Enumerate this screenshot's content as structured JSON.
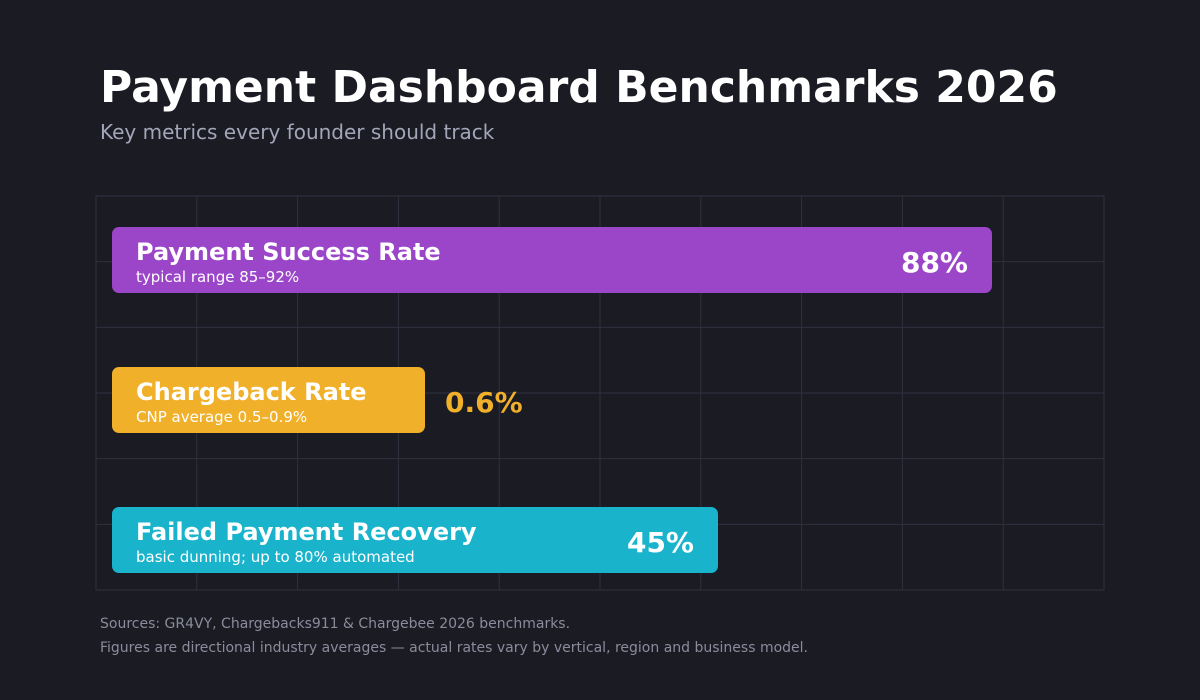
{
  "header": {
    "title": "Payment Dashboard Benchmarks 2026",
    "subtitle": "Key metrics every founder should track"
  },
  "chart_data": {
    "type": "bar",
    "orientation": "horizontal",
    "grid": true,
    "categories": [
      "Payment Success Rate",
      "Chargeback Rate",
      "Failed Payment Recovery"
    ],
    "bars": [
      {
        "name": "Payment Success Rate",
        "note": "typical range 85–92%",
        "value": 88,
        "value_label": "88%",
        "color": "#9b45c9",
        "value_color": "#ffffff",
        "value_inside": true
      },
      {
        "name": "Chargeback Rate",
        "note": "CNP average 0.5–0.9%",
        "value": 0.6,
        "value_label": "0.6%",
        "color": "#f0b02a",
        "value_color": "#f0b02a",
        "value_inside": false
      },
      {
        "name": "Failed Payment Recovery",
        "note": "basic dunning; up to 80% automated",
        "value": 45,
        "value_label": "45%",
        "color": "#1ab3cc",
        "value_color": "#ffffff",
        "value_inside": true
      }
    ]
  },
  "footer": {
    "sources": "Sources: GR4VY, Chargebacks911 & Chargebee 2026 benchmarks.",
    "disclaimer": "Figures are directional industry averages — actual rates vary by vertical, region and business model."
  }
}
